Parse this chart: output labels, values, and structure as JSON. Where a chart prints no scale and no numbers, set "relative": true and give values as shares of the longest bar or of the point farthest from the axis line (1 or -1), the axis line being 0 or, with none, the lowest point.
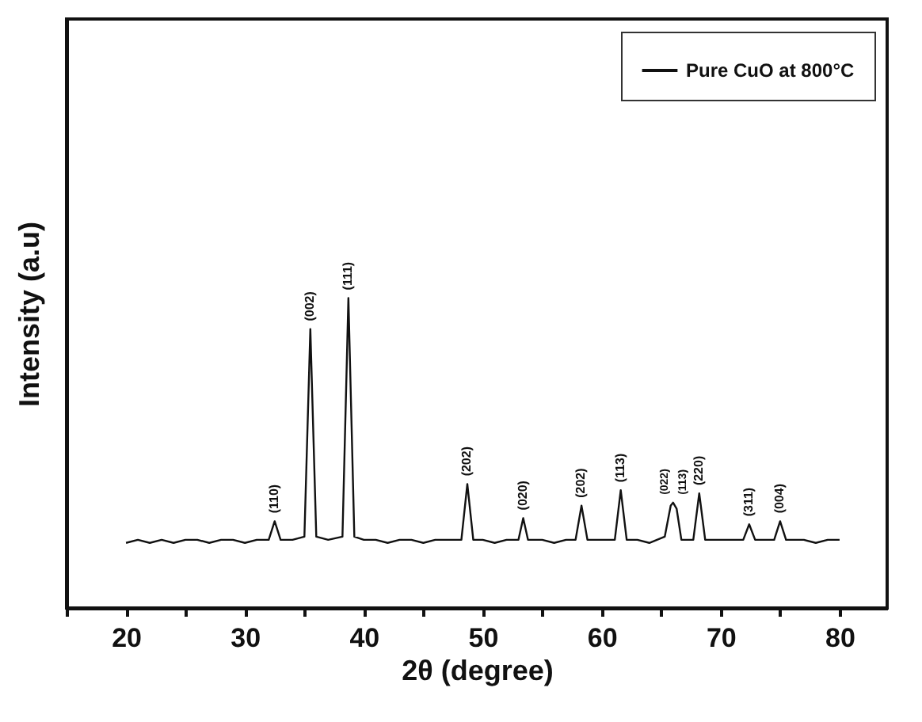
{
  "chart_data": {
    "type": "line",
    "relative": true,
    "xlabel": "2θ (degree)",
    "ylabel": "Intensity (a.u)",
    "legend": "top right",
    "xlim": [
      15,
      84
    ],
    "xticks": [
      {
        "value": 15,
        "label": null
      },
      20,
      {
        "value": 25,
        "label": null
      },
      30,
      {
        "value": 35,
        "label": null
      },
      40,
      {
        "value": 45,
        "label": null
      },
      50,
      {
        "value": 55,
        "label": null
      },
      60,
      {
        "value": 65,
        "label": null
      },
      70,
      {
        "value": 75,
        "label": null
      },
      80
    ],
    "x": [
      20,
      21,
      22,
      23,
      24,
      25,
      26,
      27,
      28,
      29,
      30,
      31,
      32.0,
      32.5,
      33.0,
      34,
      35.0,
      35.5,
      36.0,
      37,
      38.2,
      38.7,
      39.2,
      40,
      41,
      42,
      43,
      44,
      45,
      46,
      47,
      48.2,
      48.7,
      49.2,
      50,
      51,
      52,
      53.0,
      53.4,
      53.8,
      55,
      56,
      57,
      57.8,
      58.3,
      58.8,
      60,
      61.1,
      61.6,
      62.1,
      63,
      64,
      65.3,
      65.8,
      66.0,
      66.3,
      66.7,
      67.7,
      68.2,
      68.7,
      70,
      71,
      71.9,
      72.4,
      72.9,
      74.5,
      75.0,
      75.5,
      77,
      78,
      79,
      80
    ],
    "series": [
      {
        "name": "Pure CuO at 800°C",
        "color": "#111111",
        "values": [
          0.21,
          0.22,
          0.21,
          0.22,
          0.21,
          0.22,
          0.22,
          0.21,
          0.22,
          0.22,
          0.21,
          0.22,
          0.22,
          0.28,
          0.22,
          0.22,
          0.23,
          0.9,
          0.23,
          0.22,
          0.23,
          1.0,
          0.23,
          0.22,
          0.22,
          0.21,
          0.22,
          0.22,
          0.21,
          0.22,
          0.22,
          0.22,
          0.4,
          0.22,
          0.22,
          0.21,
          0.22,
          0.22,
          0.29,
          0.22,
          0.22,
          0.21,
          0.22,
          0.22,
          0.33,
          0.22,
          0.22,
          0.22,
          0.38,
          0.22,
          0.22,
          0.21,
          0.23,
          0.33,
          0.34,
          0.32,
          0.22,
          0.22,
          0.37,
          0.22,
          0.22,
          0.22,
          0.22,
          0.27,
          0.22,
          0.22,
          0.28,
          0.22,
          0.22,
          0.21,
          0.22,
          0.22
        ]
      }
    ],
    "annotations": [
      {
        "text": "(110)",
        "x": 32.5,
        "y": 0.28
      },
      {
        "text": "(002)",
        "x": 35.5,
        "y": 0.9
      },
      {
        "text": "(111)",
        "x": 38.7,
        "y": 1.0
      },
      {
        "text": "(202)",
        "x": 48.7,
        "y": 0.4
      },
      {
        "text": "(020)",
        "x": 53.4,
        "y": 0.29
      },
      {
        "text": "(202)",
        "x": 58.3,
        "y": 0.33
      },
      {
        "text": "(113)",
        "x": 61.6,
        "y": 0.38
      },
      {
        "text": "(022)",
        "x": 65.8,
        "y": 0.34
      },
      {
        "text": "(113)",
        "x": 66.3,
        "y": 0.34
      },
      {
        "text": "(220)",
        "x": 68.2,
        "y": 0.37
      },
      {
        "text": "(311)",
        "x": 72.4,
        "y": 0.27
      },
      {
        "text": "(004)",
        "x": 75.0,
        "y": 0.28
      }
    ]
  }
}
